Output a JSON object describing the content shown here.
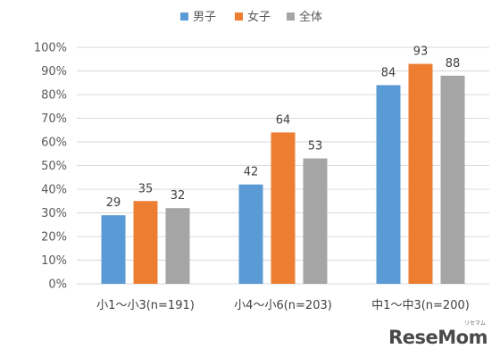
{
  "chart_data": {
    "type": "bar",
    "categories": [
      "小1～小3(n=191)",
      "小4～小6(n=203)",
      "中1～中3(n=200)"
    ],
    "series": [
      {
        "name": "男子",
        "color": "#5b9bd5",
        "values": [
          29,
          42,
          84
        ]
      },
      {
        "name": "女子",
        "color": "#ed7d31",
        "values": [
          35,
          64,
          93
        ]
      },
      {
        "name": "全体",
        "color": "#a5a5a5",
        "values": [
          32,
          53,
          88
        ]
      }
    ],
    "y_ticks": [
      "0%",
      "10%",
      "20%",
      "30%",
      "40%",
      "50%",
      "60%",
      "70%",
      "80%",
      "90%",
      "100%"
    ],
    "ylim": [
      0,
      100
    ],
    "title": "",
    "xlabel": "",
    "ylabel": "",
    "grid": true,
    "legend_position": "top-center"
  },
  "watermark": {
    "text": "ReseMom",
    "subtext": "リセマム"
  }
}
